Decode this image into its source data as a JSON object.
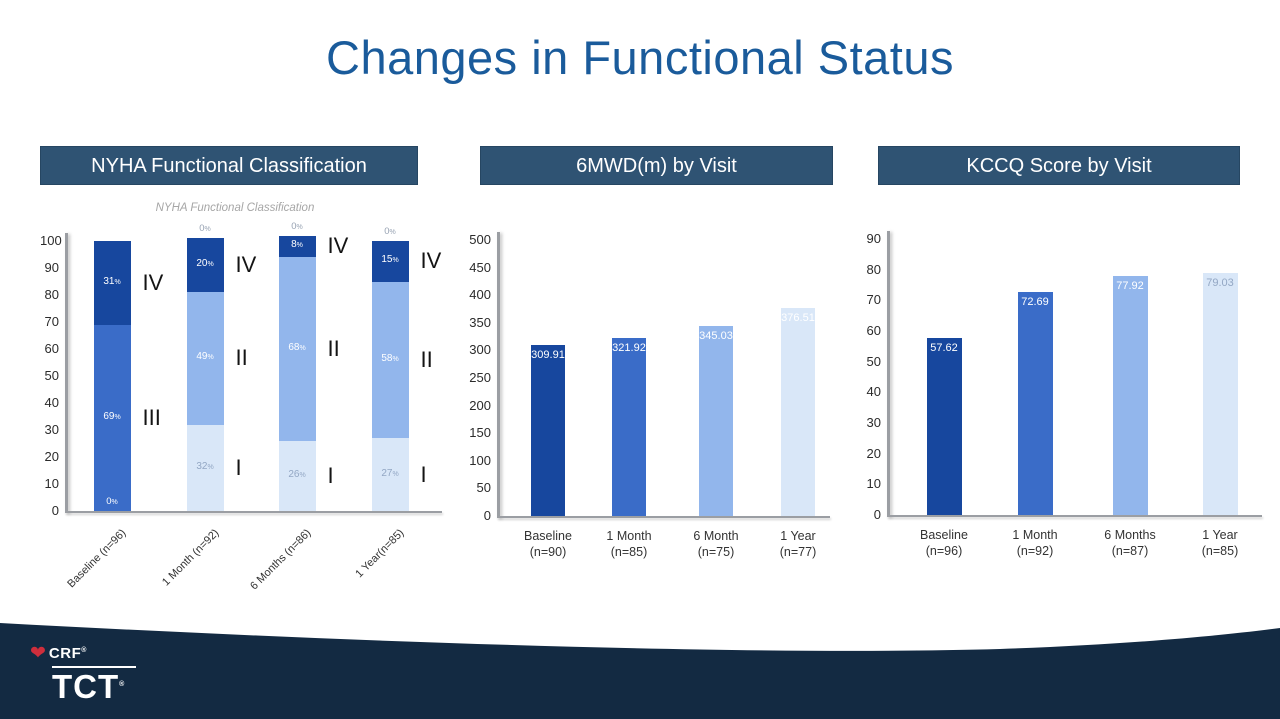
{
  "title": "Changes in Functional Status",
  "colors": {
    "title_blue": "#1a5b9b",
    "header_bg": "#2f5373",
    "footer_navy": "#132a42",
    "bar_dark": "#17479e",
    "bar_medium": "#3a6cc8",
    "bar_light": "#92b6ec",
    "bar_lightest": "#d9e7f8",
    "axis_gray": "#9b9ea3",
    "heart_red": "#cf2e3c"
  },
  "panel_headers": {
    "nyha": "NYHA Functional Classification",
    "smwd": "6MWD(m) by Visit",
    "kccq": "KCCQ Score by Visit"
  },
  "chart_data": [
    {
      "id": "nyha",
      "type": "stacked-bar",
      "title": "NYHA Functional Classification",
      "ylim": [
        0,
        100
      ],
      "ytick_step": 10,
      "grid": false,
      "legend": "roman numerals beside segments",
      "categories": [
        "Baseline (n=96)",
        "1 Month (n=92)",
        "6 Months (n=86)",
        "1 Year(n=85)"
      ],
      "bars": [
        {
          "zero_label_pos": "bottom",
          "zero_text": "0",
          "segments": [
            {
              "roman": "III",
              "pct": 69
            },
            {
              "roman": "IV",
              "pct": 31
            }
          ]
        },
        {
          "zero_label_pos": "top",
          "zero_text": "0",
          "segments": [
            {
              "roman": "I",
              "pct": 32
            },
            {
              "roman": "II",
              "pct": 49
            },
            {
              "roman": "IV",
              "pct": 20
            }
          ]
        },
        {
          "zero_label_pos": "top",
          "zero_text": "0",
          "segments": [
            {
              "roman": "I",
              "pct": 26
            },
            {
              "roman": "II",
              "pct": 68
            },
            {
              "roman": "IV",
              "pct": 8
            }
          ]
        },
        {
          "zero_label_pos": "top",
          "zero_text": "0",
          "segments": [
            {
              "roman": "I",
              "pct": 27
            },
            {
              "roman": "II",
              "pct": 58
            },
            {
              "roman": "IV",
              "pct": 15
            }
          ]
        }
      ],
      "class_colors": {
        "I": "#d9e7f8",
        "II": "#92b6ec",
        "III": "#3a6cc8",
        "IV": "#17479e"
      },
      "class_label_colors": {
        "I": "#93a7c4",
        "II": "#ffffff",
        "III": "#ffffff",
        "IV": "#ffffff"
      },
      "zero_label_color_top": "#98a3b3",
      "zero_label_color_bottom": "#ffffff"
    },
    {
      "id": "smwd",
      "type": "bar",
      "title": "6MWD(m) by Visit",
      "ylim": [
        0,
        500
      ],
      "ytick_step": 50,
      "grid": false,
      "categories": [
        [
          "Baseline",
          "(n=90)"
        ],
        [
          "1 Month",
          "(n=85)"
        ],
        [
          "6 Month",
          "(n=75)"
        ],
        [
          "1 Year",
          "(n=77)"
        ]
      ],
      "values": [
        309.91,
        321.92,
        345.03,
        376.51
      ],
      "value_labels": [
        "309.91",
        "321.92",
        "345.03",
        "376.51"
      ],
      "bar_colors": [
        "#17479e",
        "#3a6cc8",
        "#92b6ec",
        "#d9e7f8"
      ],
      "value_label_colors": [
        "#ffffff",
        "#ffffff",
        "#ffffff",
        "#ffffff"
      ]
    },
    {
      "id": "kccq",
      "type": "bar",
      "title": "KCCQ Score by Visit",
      "ylim": [
        0,
        90
      ],
      "ytick_step": 10,
      "grid": false,
      "categories": [
        [
          "Baseline",
          "(n=96)"
        ],
        [
          "1 Month",
          "(n=92)"
        ],
        [
          "6 Months",
          "(n=87)"
        ],
        [
          "1 Year",
          "(n=85)"
        ]
      ],
      "values": [
        57.62,
        72.69,
        77.92,
        79.03
      ],
      "value_labels": [
        "57.62",
        "72.69",
        "77.92",
        "79.03"
      ],
      "bar_colors": [
        "#17479e",
        "#3a6cc8",
        "#92b6ec",
        "#d9e7f8"
      ],
      "value_label_colors": [
        "#ffffff",
        "#ffffff",
        "#ffffff",
        "#93a7c4"
      ]
    }
  ],
  "footer": {
    "brand_small": "CRF",
    "brand_large": "TCT",
    "registered": "®"
  }
}
